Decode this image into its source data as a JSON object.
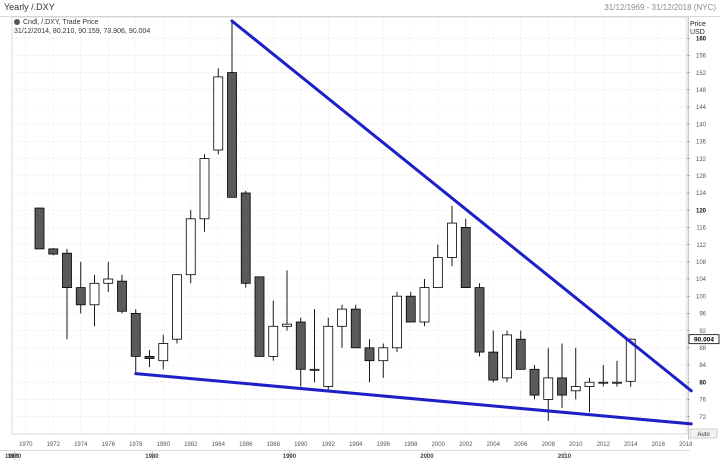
{
  "header": {
    "title": "Yearly /.DXY",
    "range": "31/12/1969 - 31/12/2018 (NYC)"
  },
  "legend": {
    "line1": "Cndl, /.DXY, Trade Price",
    "line2": "31/12/2014, 80.210, 90.159, 78.906, 90.004"
  },
  "axis": {
    "price_label": "Price",
    "unit_label": "USD",
    "auto_label": "Auto",
    "current_value": "90.004"
  },
  "chart_data": {
    "type": "candlestick",
    "ylim": [
      70,
      164
    ],
    "y_ticks": [
      72,
      76,
      80,
      84,
      88,
      92,
      96,
      100,
      104,
      108,
      112,
      116,
      120,
      124,
      128,
      132,
      136,
      140,
      144,
      148,
      152,
      156,
      160
    ],
    "x_ticks": [
      "1970",
      "1972",
      "1974",
      "1976",
      "1978",
      "1980",
      "1982",
      "1984",
      "1986",
      "1988",
      "1990",
      "1992",
      "1994",
      "1996",
      "1998",
      "2000",
      "2002",
      "2004",
      "2006",
      "2008",
      "2010",
      "2012",
      "2014",
      "2016",
      "2018"
    ],
    "decade_labels": [
      "1960",
      "1970",
      "1980",
      "1990",
      "2000",
      "2010"
    ],
    "candles": [
      {
        "year": 1971,
        "open": 120.5,
        "high": 120.5,
        "low": 111.0,
        "close": 111.0
      },
      {
        "year": 1972,
        "open": 111.0,
        "high": 111.2,
        "low": 109.5,
        "close": 109.8
      },
      {
        "year": 1973,
        "open": 110.0,
        "high": 111.0,
        "low": 90.0,
        "close": 102.0
      },
      {
        "year": 1974,
        "open": 102.0,
        "high": 108.0,
        "low": 96.0,
        "close": 98.0
      },
      {
        "year": 1975,
        "open": 98.0,
        "high": 105.0,
        "low": 93.0,
        "close": 103.0
      },
      {
        "year": 1976,
        "open": 103.0,
        "high": 108.0,
        "low": 101.0,
        "close": 104.0
      },
      {
        "year": 1977,
        "open": 103.5,
        "high": 105.0,
        "low": 96.0,
        "close": 96.5
      },
      {
        "year": 1978,
        "open": 96.0,
        "high": 97.0,
        "low": 82.0,
        "close": 86.0
      },
      {
        "year": 1979,
        "open": 86.0,
        "high": 87.5,
        "low": 83.5,
        "close": 85.5
      },
      {
        "year": 1980,
        "open": 85.0,
        "high": 91.0,
        "low": 83.0,
        "close": 89.0
      },
      {
        "year": 1981,
        "open": 90.0,
        "high": 105.0,
        "low": 89.0,
        "close": 105.0
      },
      {
        "year": 1982,
        "open": 105.0,
        "high": 120.0,
        "low": 103.0,
        "close": 118.0
      },
      {
        "year": 1983,
        "open": 118.0,
        "high": 133.0,
        "low": 115.0,
        "close": 132.0
      },
      {
        "year": 1984,
        "open": 134.0,
        "high": 153.0,
        "low": 133.0,
        "close": 151.0
      },
      {
        "year": 1985,
        "open": 152.0,
        "high": 164.0,
        "low": 123.0,
        "close": 123.0
      },
      {
        "year": 1986,
        "open": 124.0,
        "high": 124.5,
        "low": 102.0,
        "close": 103.0
      },
      {
        "year": 1987,
        "open": 104.5,
        "high": 104.5,
        "low": 86.0,
        "close": 86.0
      },
      {
        "year": 1988,
        "open": 86.0,
        "high": 99.0,
        "low": 85.0,
        "close": 93.0
      },
      {
        "year": 1989,
        "open": 93.0,
        "high": 106.0,
        "low": 92.0,
        "close": 93.5
      },
      {
        "year": 1990,
        "open": 94.0,
        "high": 95.0,
        "low": 79.0,
        "close": 83.0
      },
      {
        "year": 1991,
        "open": 83.0,
        "high": 97.0,
        "low": 80.0,
        "close": 83.0
      },
      {
        "year": 1992,
        "open": 79.0,
        "high": 95.0,
        "low": 78.0,
        "close": 93.0
      },
      {
        "year": 1993,
        "open": 93.0,
        "high": 98.0,
        "low": 88.0,
        "close": 97.0
      },
      {
        "year": 1994,
        "open": 97.0,
        "high": 98.0,
        "low": 88.0,
        "close": 88.0
      },
      {
        "year": 1995,
        "open": 88.0,
        "high": 90.0,
        "low": 80.0,
        "close": 85.0
      },
      {
        "year": 1996,
        "open": 85.0,
        "high": 89.0,
        "low": 81.0,
        "close": 88.0
      },
      {
        "year": 1997,
        "open": 88.0,
        "high": 101.0,
        "low": 87.0,
        "close": 100.0
      },
      {
        "year": 1998,
        "open": 100.0,
        "high": 101.0,
        "low": 94.0,
        "close": 94.0
      },
      {
        "year": 1999,
        "open": 94.0,
        "high": 104.0,
        "low": 93.0,
        "close": 102.0
      },
      {
        "year": 1999.97,
        "open": 102.0,
        "high": 112.0,
        "low": 102.0,
        "close": 109.0
      },
      {
        "year": 2001,
        "open": 109.0,
        "high": 121.0,
        "low": 107.0,
        "close": 117.0
      },
      {
        "year": 2002,
        "open": 116.0,
        "high": 118.0,
        "low": 102.0,
        "close": 102.0
      },
      {
        "year": 2003,
        "open": 102.0,
        "high": 103.0,
        "low": 86.0,
        "close": 87.0
      },
      {
        "year": 2004,
        "open": 87.0,
        "high": 92.0,
        "low": 80.0,
        "close": 80.5
      },
      {
        "year": 2005,
        "open": 81.0,
        "high": 92.0,
        "low": 80.0,
        "close": 91.0
      },
      {
        "year": 2006,
        "open": 90.0,
        "high": 92.0,
        "low": 83.0,
        "close": 83.0
      },
      {
        "year": 2007,
        "open": 83.0,
        "high": 84.0,
        "low": 76.0,
        "close": 77.0
      },
      {
        "year": 2008,
        "open": 76.0,
        "high": 88.0,
        "low": 71.0,
        "close": 81.0
      },
      {
        "year": 2009,
        "open": 81.0,
        "high": 89.0,
        "low": 74.0,
        "close": 77.0
      },
      {
        "year": 2010,
        "open": 78.0,
        "high": 88.0,
        "low": 76.0,
        "close": 79.0
      },
      {
        "year": 2011,
        "open": 79.0,
        "high": 81.0,
        "low": 73.0,
        "close": 80.0
      },
      {
        "year": 2012,
        "open": 80.0,
        "high": 84.0,
        "low": 79.0,
        "close": 80.0
      },
      {
        "year": 2013,
        "open": 80.0,
        "high": 85.0,
        "low": 79.0,
        "close": 80.0
      },
      {
        "year": 2014,
        "open": 80.21,
        "high": 90.159,
        "low": 78.906,
        "close": 90.004
      }
    ],
    "trendlines": [
      {
        "from": {
          "year": 1985,
          "value": 164.0
        },
        "to": {
          "year": 2018.4,
          "value": 78.0
        }
      },
      {
        "from": {
          "year": 1978,
          "value": 82.0
        },
        "to": {
          "year": 2018.4,
          "value": 70.3
        }
      }
    ]
  },
  "colors": {
    "bear_fill": "#5a5a5a",
    "bull_fill": "#ffffff",
    "candle_stroke": "#000000",
    "trendline": "#1f1fc8",
    "grid": "#e6e6e6",
    "price_tag_bg": "#ffffff"
  }
}
